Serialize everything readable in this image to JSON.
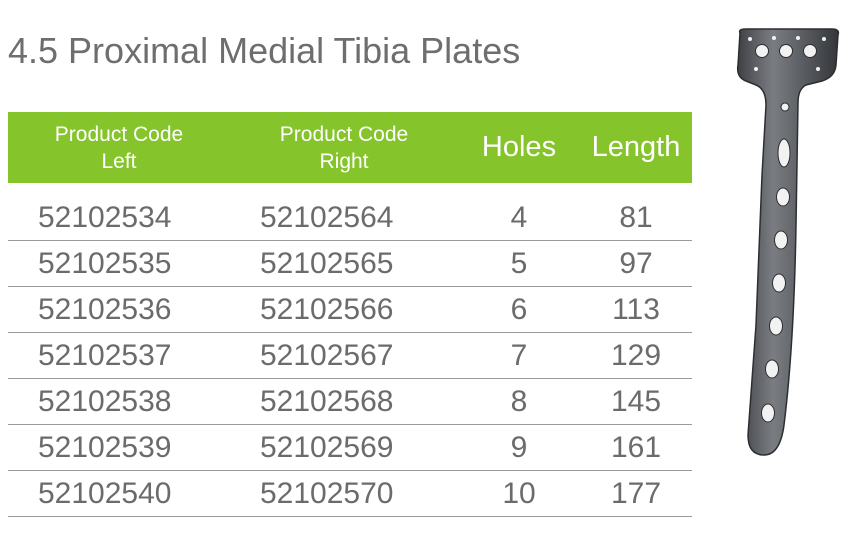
{
  "title": "4.5 Proximal Medial Tibia Plates",
  "table": {
    "headers": {
      "left_line1": "Product Code",
      "left_line2": "Left",
      "right_line1": "Product Code",
      "right_line2": "Right",
      "holes": "Holes",
      "length": "Length"
    },
    "rows": [
      {
        "left": "52102534",
        "right": "52102564",
        "holes": "4",
        "length": "81"
      },
      {
        "left": "52102535",
        "right": "52102565",
        "holes": "5",
        "length": "97"
      },
      {
        "left": "52102536",
        "right": "52102566",
        "holes": "6",
        "length": "113"
      },
      {
        "left": "52102537",
        "right": "52102567",
        "holes": "7",
        "length": "129"
      },
      {
        "left": "52102538",
        "right": "52102568",
        "holes": "8",
        "length": "145"
      },
      {
        "left": "52102539",
        "right": "52102569",
        "holes": "9",
        "length": "161"
      },
      {
        "left": "52102540",
        "right": "52102570",
        "holes": "10",
        "length": "177"
      }
    ]
  },
  "colors": {
    "header_green": "#85c42b",
    "text_gray": "#6b6b6b",
    "title_gray": "#6e6e6e",
    "plate_metal": "#5a5d61"
  },
  "image": {
    "icon": "tibia-plate-illustration"
  }
}
